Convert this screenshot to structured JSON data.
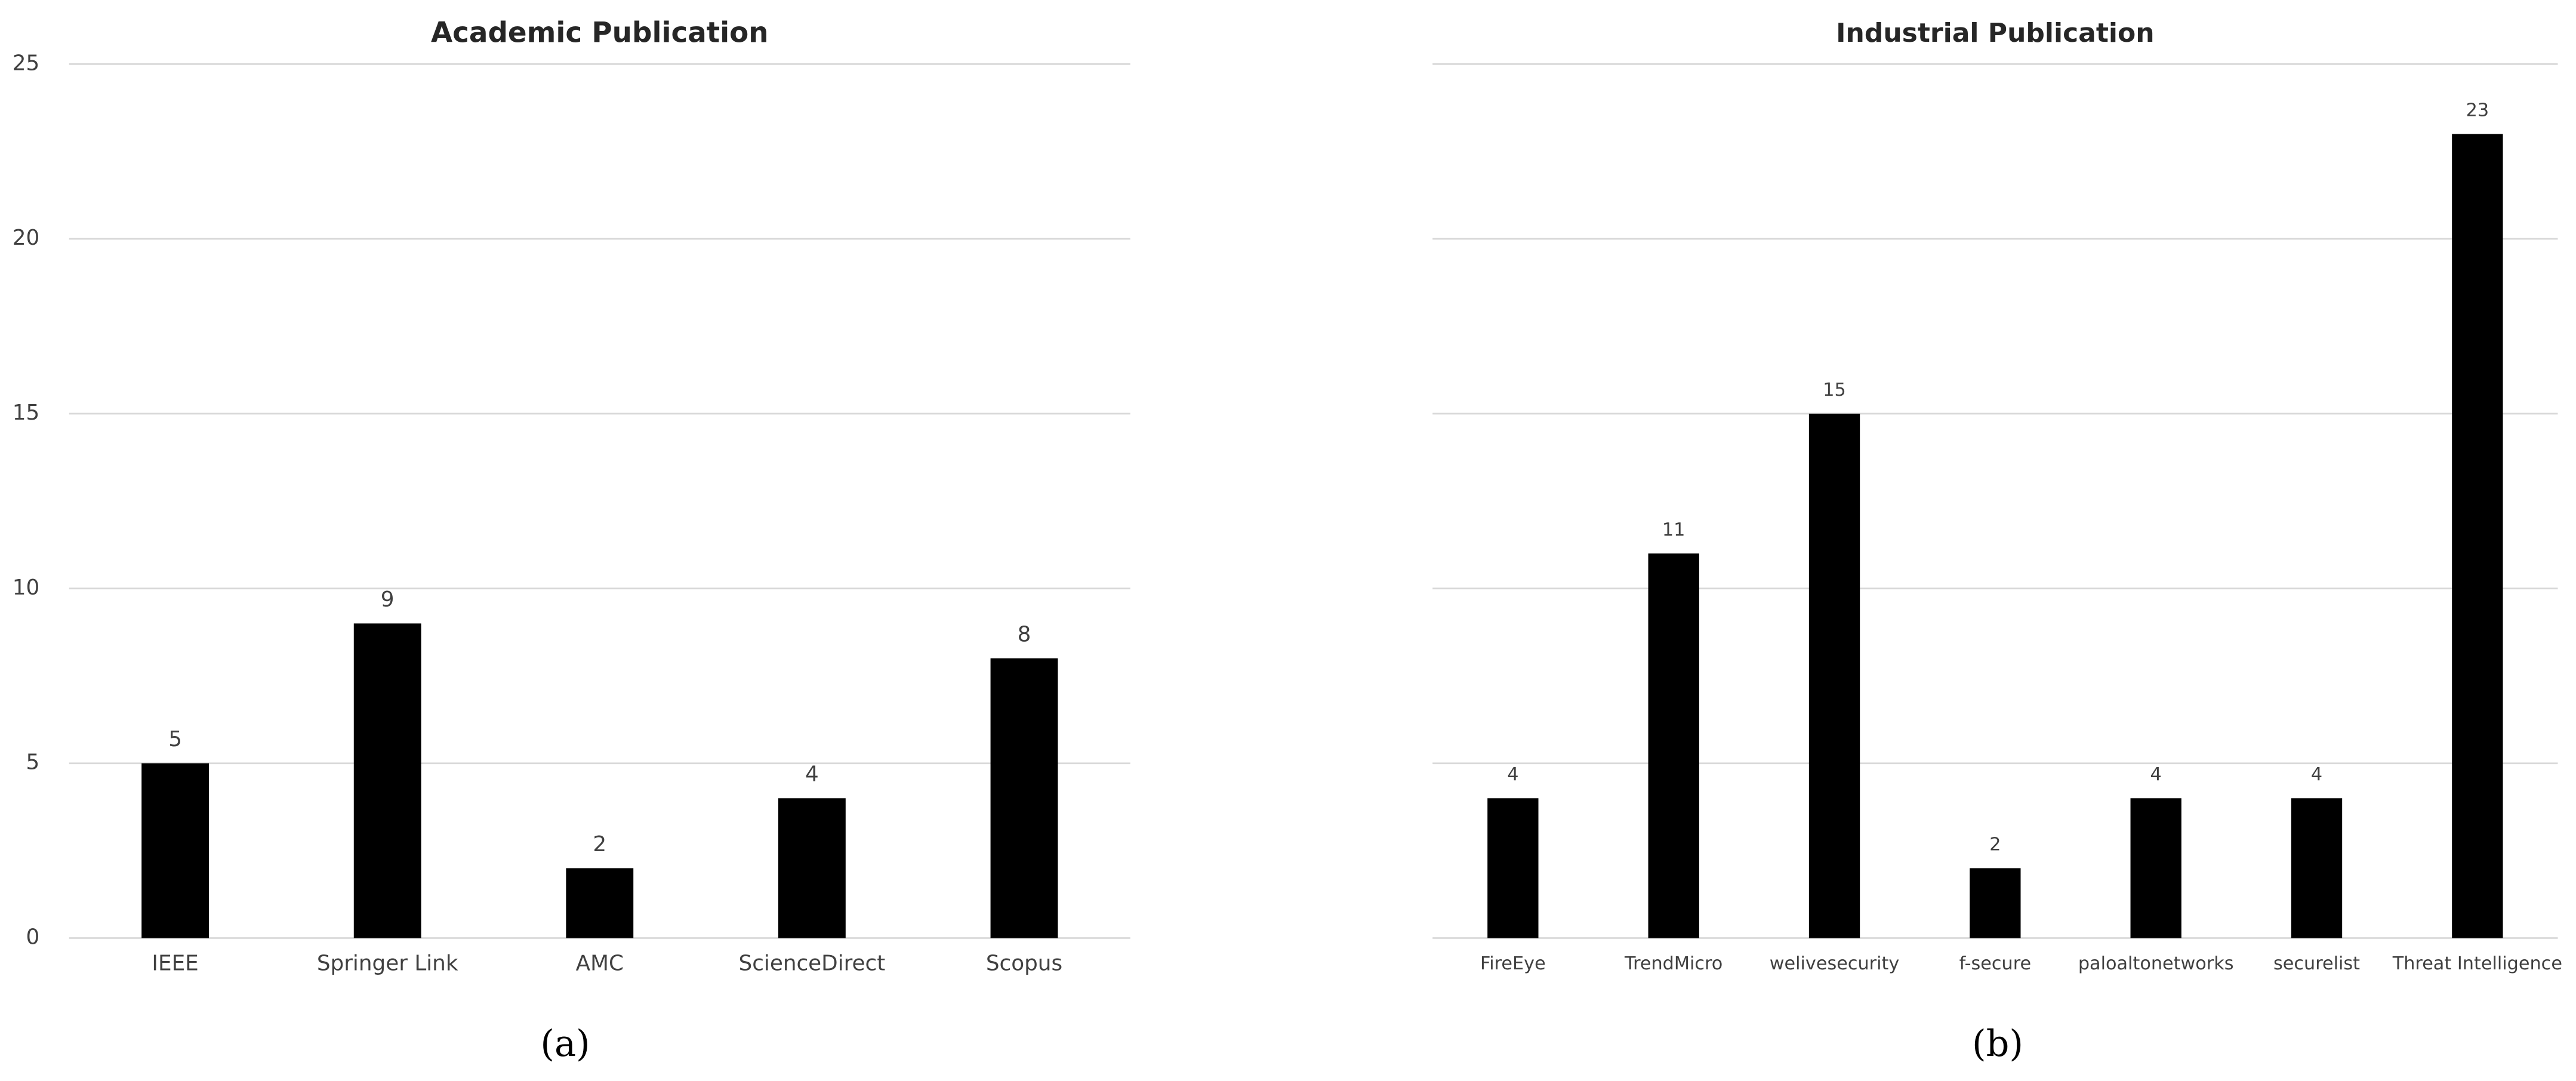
{
  "chart_data": [
    {
      "type": "bar",
      "title": "Academic Publication",
      "caption": "(a)",
      "categories": [
        "IEEE",
        "Springer Link",
        "AMC",
        "ScienceDirect",
        "Scopus"
      ],
      "values": [
        5,
        9,
        2,
        4,
        8
      ],
      "color": "#000000",
      "ylim": [
        0,
        25
      ],
      "yticks": [
        0,
        5,
        10,
        15,
        20,
        25
      ],
      "grid": true
    },
    {
      "type": "bar",
      "title": "Industrial Publication",
      "caption": "(b)",
      "categories": [
        "FireEye",
        "TrendMicro",
        "welivesecurity",
        "f-secure",
        "paloaltonetworks",
        "securelist",
        "Threat Intelligence"
      ],
      "values": [
        4,
        11,
        15,
        2,
        4,
        4,
        23
      ],
      "color": "#000000",
      "ylim": [
        0,
        25
      ],
      "yticks": [
        0,
        5,
        10,
        15,
        20,
        25
      ],
      "grid": true
    }
  ]
}
